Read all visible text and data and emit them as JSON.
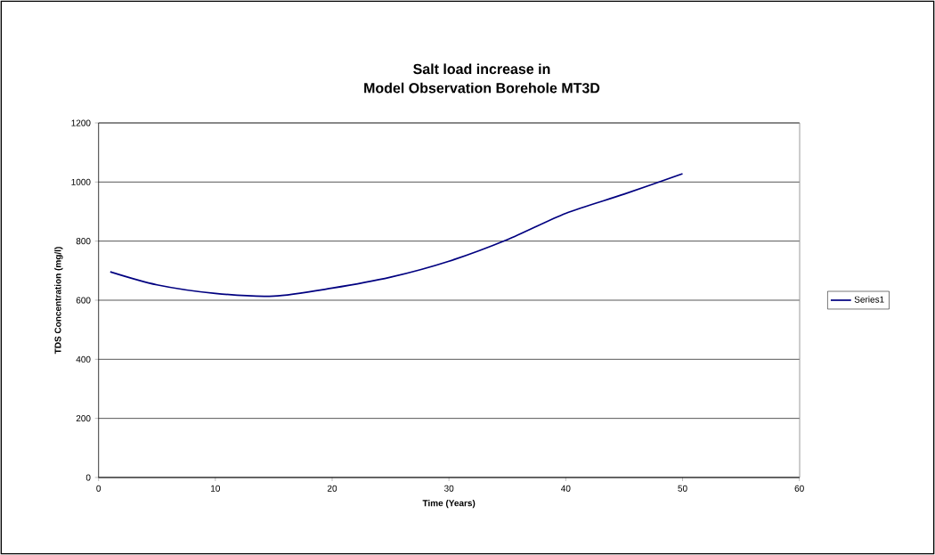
{
  "chart_data": {
    "type": "line",
    "title": "Salt load increase in",
    "subtitle": "Model Observation Borehole MT3D",
    "xlabel": "Time (Years)",
    "ylabel": "TDS Concentration (mg/l)",
    "x": [
      1,
      5,
      10,
      15,
      20,
      25,
      30,
      35,
      40,
      45,
      50
    ],
    "series": [
      {
        "name": "Series1",
        "color": "#000080",
        "values": [
          696,
          652,
          623,
          614,
          641,
          678,
          732,
          805,
          894,
          959,
          1028
        ]
      }
    ],
    "xlim": [
      0,
      60
    ],
    "xticks": [
      0,
      10,
      20,
      30,
      40,
      50,
      60
    ],
    "ylim": [
      0,
      1200
    ],
    "yticks": [
      0,
      200,
      400,
      600,
      800,
      1000,
      1200
    ],
    "grid": "y",
    "legend": "right",
    "marker": "none",
    "line_style": "solid"
  }
}
